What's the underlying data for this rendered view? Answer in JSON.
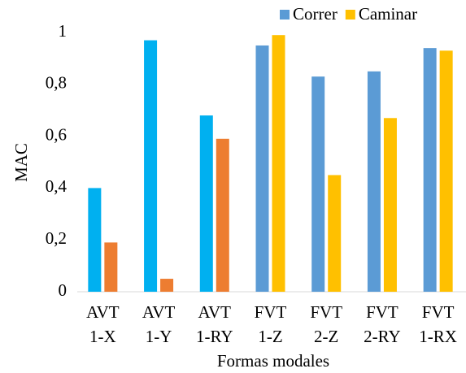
{
  "chart_data": {
    "type": "bar",
    "y_label": "MAC",
    "x_label": "Formas modales",
    "categories": [
      [
        "AVT",
        "1-X"
      ],
      [
        "AVT",
        "1-Y"
      ],
      [
        "AVT",
        "1-RY"
      ],
      [
        "FVT",
        "1-Z"
      ],
      [
        "FVT",
        "2-Z"
      ],
      [
        "FVT",
        "2-RY"
      ],
      [
        "FVT",
        "1-RX"
      ]
    ],
    "series": [
      {
        "name": "Correr",
        "color": "#5b9bd5",
        "colors": [
          "#00b0f0",
          "#00b0f0",
          "#00b0f0",
          "#5b9bd5",
          "#5b9bd5",
          "#5b9bd5",
          "#5b9bd5"
        ],
        "values": [
          0.4,
          0.97,
          0.68,
          0.95,
          0.83,
          0.85,
          0.94
        ]
      },
      {
        "name": "Caminar",
        "color": "#ffc000",
        "colors": [
          "#ed7d31",
          "#ed7d31",
          "#ed7d31",
          "#ffc000",
          "#ffc000",
          "#ffc000",
          "#ffc000"
        ],
        "values": [
          0.19,
          0.05,
          0.59,
          0.99,
          0.45,
          0.67,
          0.93
        ]
      }
    ],
    "ylim": [
      0,
      1
    ],
    "yticks": [
      0,
      {
        "value": 0.2,
        "label": "0,2"
      },
      {
        "value": 0.4,
        "label": "0,4"
      },
      {
        "value": 0.6,
        "label": "0,6"
      },
      {
        "value": 0.8,
        "label": "0,8"
      },
      1
    ],
    "grid": false,
    "legend": "top-right"
  }
}
